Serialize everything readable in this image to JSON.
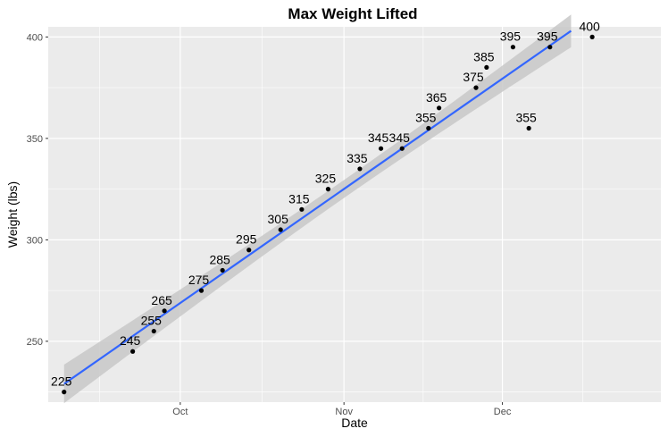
{
  "chart_data": {
    "type": "scatter",
    "title": "Max Weight Lifted",
    "xlabel": "Date",
    "ylabel": "Weight (lbs)",
    "xlim": [
      "2023-09-06",
      "2023-12-31"
    ],
    "ylim": [
      220,
      405
    ],
    "x_ticks": [
      {
        "date": "2023-10-01",
        "label": "Oct"
      },
      {
        "date": "2023-11-01",
        "label": "Nov"
      },
      {
        "date": "2023-12-01",
        "label": "Dec"
      }
    ],
    "y_ticks": [
      250,
      300,
      350,
      400
    ],
    "grid": true,
    "points": [
      {
        "x": "2023-09-09",
        "y": 225,
        "label": "225"
      },
      {
        "x": "2023-09-22",
        "y": 245,
        "label": "245"
      },
      {
        "x": "2023-09-26",
        "y": 255,
        "label": "255"
      },
      {
        "x": "2023-09-28",
        "y": 265,
        "label": "265"
      },
      {
        "x": "2023-10-05",
        "y": 275,
        "label": "275"
      },
      {
        "x": "2023-10-09",
        "y": 285,
        "label": "285"
      },
      {
        "x": "2023-10-14",
        "y": 295,
        "label": "295"
      },
      {
        "x": "2023-10-20",
        "y": 305,
        "label": "305"
      },
      {
        "x": "2023-10-24",
        "y": 315,
        "label": "315"
      },
      {
        "x": "2023-10-29",
        "y": 325,
        "label": "325"
      },
      {
        "x": "2023-11-04",
        "y": 335,
        "label": "335"
      },
      {
        "x": "2023-11-08",
        "y": 345,
        "label": "345"
      },
      {
        "x": "2023-11-12",
        "y": 345,
        "label": "345"
      },
      {
        "x": "2023-11-17",
        "y": 355,
        "label": "355"
      },
      {
        "x": "2023-11-19",
        "y": 365,
        "label": "365"
      },
      {
        "x": "2023-11-26",
        "y": 375,
        "label": "375"
      },
      {
        "x": "2023-11-28",
        "y": 385,
        "label": "385"
      },
      {
        "x": "2023-12-03",
        "y": 395,
        "label": "395"
      },
      {
        "x": "2023-12-06",
        "y": 355,
        "label": "355"
      },
      {
        "x": "2023-12-10",
        "y": 395,
        "label": "395"
      },
      {
        "x": "2023-12-18",
        "y": 400,
        "label": "400"
      }
    ],
    "trend_line": {
      "type": "linear",
      "start": {
        "x": "2023-09-09",
        "y": 229
      },
      "end": {
        "x": "2023-12-14",
        "y": 403
      },
      "confidence_band": true
    },
    "colors": {
      "panel_background": "#ebebeb",
      "grid": "#ffffff",
      "trend_line": "#3366ff",
      "band": "#c8c8c8",
      "points": "#000000"
    }
  }
}
